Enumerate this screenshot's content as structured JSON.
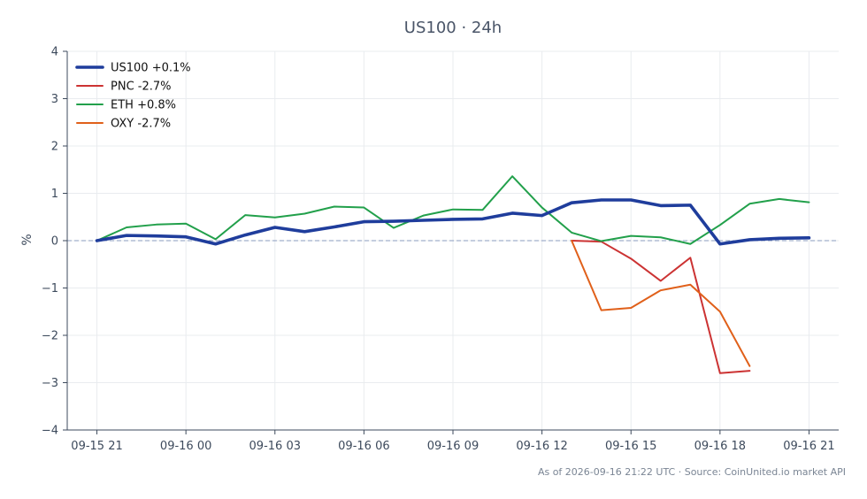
{
  "chart_data": {
    "type": "line",
    "title": "US100 · 24h",
    "xlabel": "",
    "ylabel": "%",
    "x_ticks": [
      "09-15 21",
      "09-16 00",
      "09-16 03",
      "09-16 06",
      "09-16 09",
      "09-16 12",
      "09-16 15",
      "09-16 18",
      "09-16 21"
    ],
    "x_range": [
      "09-15 20:00",
      "09-16 22:00"
    ],
    "ylim": [
      -4,
      4
    ],
    "y_ticks": [
      "4",
      "3",
      "2",
      "1",
      "0",
      "−1",
      "−2",
      "−3",
      "−4"
    ],
    "zero_reference_line": true,
    "grid": true,
    "legend_position": "top-left",
    "series": [
      {
        "name": "US100 +0.1%",
        "color": "#1f3d9c",
        "emphasis": "thick",
        "points": [
          [
            "09-15 21:00",
            0.0
          ],
          [
            "09-15 22:00",
            0.11
          ],
          [
            "09-15 23:00",
            0.1
          ],
          [
            "09-16 00:00",
            0.08
          ],
          [
            "09-16 01:00",
            -0.07
          ],
          [
            "09-16 02:00",
            0.12
          ],
          [
            "09-16 03:00",
            0.28
          ],
          [
            "09-16 04:00",
            0.19
          ],
          [
            "09-16 05:00",
            0.29
          ],
          [
            "09-16 06:00",
            0.4
          ],
          [
            "09-16 07:00",
            0.41
          ],
          [
            "09-16 08:00",
            0.43
          ],
          [
            "09-16 09:00",
            0.45
          ],
          [
            "09-16 10:00",
            0.46
          ],
          [
            "09-16 11:00",
            0.58
          ],
          [
            "09-16 12:00",
            0.53
          ],
          [
            "09-16 13:00",
            0.8
          ],
          [
            "09-16 14:00",
            0.86
          ],
          [
            "09-16 15:00",
            0.86
          ],
          [
            "09-16 16:00",
            0.74
          ],
          [
            "09-16 17:00",
            0.75
          ],
          [
            "09-16 18:00",
            -0.07
          ],
          [
            "09-16 19:00",
            0.02
          ],
          [
            "09-16 20:00",
            0.05
          ],
          [
            "09-16 21:00",
            0.06
          ]
        ]
      },
      {
        "name": "PNC -2.7%",
        "color": "#cc3333",
        "emphasis": "normal",
        "points": [
          [
            "09-16 13:00",
            0.0
          ],
          [
            "09-16 14:00",
            -0.02
          ],
          [
            "09-16 15:00",
            -0.38
          ],
          [
            "09-16 16:00",
            -0.85
          ],
          [
            "09-16 17:00",
            -0.36
          ],
          [
            "09-16 18:00",
            -2.8
          ],
          [
            "09-16 19:00",
            -2.75
          ]
        ]
      },
      {
        "name": "ETH +0.8%",
        "color": "#22a04b",
        "emphasis": "normal",
        "points": [
          [
            "09-15 21:00",
            0.0
          ],
          [
            "09-15 22:00",
            0.28
          ],
          [
            "09-15 23:00",
            0.34
          ],
          [
            "09-16 00:00",
            0.36
          ],
          [
            "09-16 01:00",
            0.03
          ],
          [
            "09-16 02:00",
            0.54
          ],
          [
            "09-16 03:00",
            0.49
          ],
          [
            "09-16 04:00",
            0.57
          ],
          [
            "09-16 05:00",
            0.72
          ],
          [
            "09-16 06:00",
            0.7
          ],
          [
            "09-16 07:00",
            0.27
          ],
          [
            "09-16 08:00",
            0.53
          ],
          [
            "09-16 09:00",
            0.66
          ],
          [
            "09-16 10:00",
            0.65
          ],
          [
            "09-16 11:00",
            1.36
          ],
          [
            "09-16 12:00",
            0.7
          ],
          [
            "09-16 13:00",
            0.17
          ],
          [
            "09-16 14:00",
            -0.01
          ],
          [
            "09-16 15:00",
            0.1
          ],
          [
            "09-16 16:00",
            0.07
          ],
          [
            "09-16 17:00",
            -0.07
          ],
          [
            "09-16 18:00",
            0.33
          ],
          [
            "09-16 19:00",
            0.78
          ],
          [
            "09-16 20:00",
            0.88
          ],
          [
            "09-16 21:00",
            0.81
          ]
        ]
      },
      {
        "name": "OXY -2.7%",
        "color": "#e0601a",
        "emphasis": "normal",
        "points": [
          [
            "09-16 13:00",
            0.0
          ],
          [
            "09-16 14:00",
            -1.47
          ],
          [
            "09-16 15:00",
            -1.42
          ],
          [
            "09-16 16:00",
            -1.05
          ],
          [
            "09-16 17:00",
            -0.93
          ],
          [
            "09-16 18:00",
            -1.5
          ],
          [
            "09-16 19:00",
            -2.65
          ]
        ]
      }
    ]
  },
  "footer": {
    "note": "As of 2026-09-16 21:22 UTC · Source: CoinUnited.io market API"
  }
}
